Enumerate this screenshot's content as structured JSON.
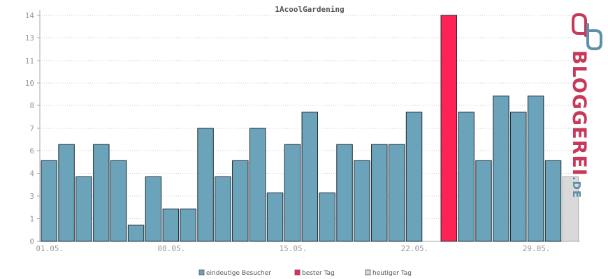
{
  "chart_data": {
    "type": "bar",
    "title": "1AcoolGardening",
    "y_ticks": [
      "0",
      "1",
      "3",
      "4",
      "6",
      "7",
      "8",
      "10",
      "11",
      "13",
      "14"
    ],
    "ylim": [
      0,
      14
    ],
    "x_ticks": [
      "01.05.",
      "08.05.",
      "15.05.",
      "22.05.",
      "29.05."
    ],
    "grid": true,
    "legend_placement": "bottom",
    "series": [
      {
        "name": "eindeutige Besucher",
        "color": "#6ba3bb",
        "values": [
          5,
          6,
          4,
          6,
          5,
          1,
          4,
          2,
          2,
          7,
          4,
          5,
          7,
          3,
          6,
          8,
          3,
          6,
          5,
          6,
          6,
          8,
          0,
          14,
          8,
          5,
          9,
          8,
          9,
          5,
          4
        ]
      }
    ],
    "best_day_index": 23,
    "today_index": 30,
    "legend": [
      {
        "label": "eindeutige Besucher",
        "color": "#6ba3bb"
      },
      {
        "label": "bester Tag",
        "color": "#ff2255"
      },
      {
        "label": "heutiger Tag",
        "color": "#d9d9d9"
      }
    ]
  },
  "logo": {
    "text_main": "BLOGGEREI",
    "text_suffix": ".DE",
    "main_color": "#c8385a",
    "suffix_color": "#5f8fa8"
  }
}
